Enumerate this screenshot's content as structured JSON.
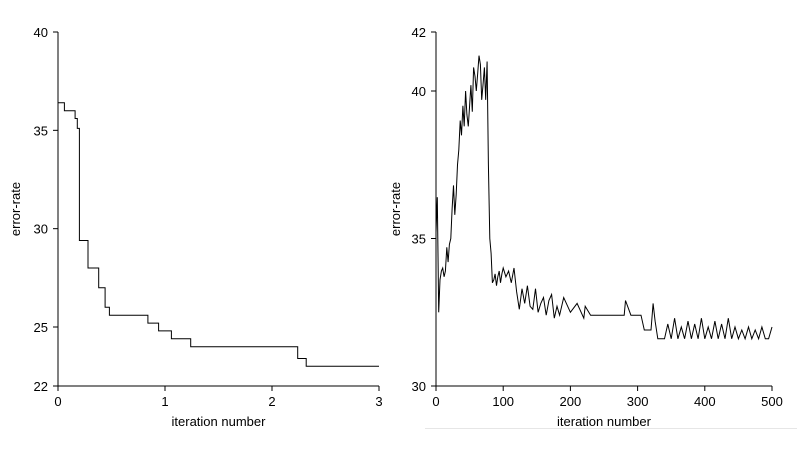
{
  "chart_data": [
    {
      "type": "line",
      "title": "",
      "xlabel": "iteration number",
      "ylabel": "error-rate",
      "xlim": [
        0,
        3
      ],
      "ylim": [
        22,
        40
      ],
      "x_ticks": [
        0,
        1,
        2,
        3
      ],
      "y_ticks": [
        22,
        25,
        30,
        35,
        40
      ],
      "grid": false,
      "legend": "none",
      "line_color": "#000000",
      "series": [
        {
          "step": true,
          "x": [
            0,
            0.06,
            0.08,
            0.16,
            0.18,
            0.2,
            0.22,
            0.28,
            0.34,
            0.38,
            0.44,
            0.48,
            0.84,
            0.94,
            1.06,
            1.24,
            2.24,
            2.32,
            3.0
          ],
          "y": [
            36.4,
            36.0,
            36.0,
            35.6,
            35.1,
            29.4,
            29.4,
            28.0,
            28.0,
            27.0,
            26.0,
            25.6,
            25.2,
            24.8,
            24.4,
            24.0,
            23.4,
            23.0,
            23.0
          ]
        }
      ]
    },
    {
      "type": "line",
      "title": "",
      "xlabel": "iteration number",
      "ylabel": "error-rate",
      "xlim": [
        0,
        500
      ],
      "ylim": [
        30,
        42
      ],
      "x_ticks": [
        0,
        100,
        200,
        300,
        400,
        500
      ],
      "y_ticks": [
        30,
        35,
        40,
        42
      ],
      "grid": false,
      "legend": "none",
      "line_color": "#000000",
      "series": [
        {
          "step": false,
          "x": [
            0,
            2,
            4,
            6,
            8,
            10,
            12,
            14,
            16,
            18,
            20,
            22,
            24,
            26,
            28,
            30,
            32,
            34,
            36,
            38,
            40,
            42,
            44,
            46,
            48,
            50,
            52,
            54,
            56,
            58,
            60,
            62,
            64,
            66,
            68,
            70,
            72,
            74,
            76,
            78,
            80,
            82,
            84,
            86,
            88,
            90,
            92,
            94,
            96,
            98,
            100,
            104,
            108,
            112,
            116,
            120,
            124,
            128,
            132,
            136,
            140,
            144,
            148,
            152,
            156,
            160,
            164,
            168,
            172,
            176,
            180,
            184,
            190,
            200,
            210,
            220,
            222,
            230,
            250,
            270,
            280,
            282,
            290,
            300,
            305,
            310,
            315,
            320,
            323,
            326,
            330,
            335,
            340,
            345,
            350,
            355,
            360,
            365,
            370,
            375,
            380,
            385,
            390,
            395,
            400,
            405,
            410,
            415,
            420,
            425,
            430,
            435,
            440,
            445,
            450,
            455,
            460,
            465,
            470,
            475,
            480,
            485,
            490,
            495,
            500
          ],
          "y": [
            35.2,
            36.4,
            32.5,
            33.6,
            33.9,
            34.0,
            33.7,
            33.9,
            34.7,
            34.2,
            34.8,
            35.0,
            36.0,
            36.8,
            35.8,
            36.5,
            37.5,
            38.0,
            39.0,
            38.5,
            39.5,
            38.8,
            40.0,
            39.2,
            38.8,
            39.5,
            40.2,
            39.3,
            40.8,
            40.5,
            40.0,
            40.6,
            41.2,
            40.9,
            39.7,
            40.2,
            40.8,
            39.7,
            41.0,
            37.5,
            35.0,
            34.5,
            33.5,
            33.6,
            33.8,
            33.4,
            33.7,
            33.9,
            33.5,
            33.8,
            34.0,
            33.7,
            33.9,
            33.5,
            34.0,
            33.2,
            32.6,
            33.3,
            32.8,
            33.4,
            32.7,
            32.6,
            33.3,
            32.5,
            32.8,
            33.0,
            32.4,
            32.9,
            33.1,
            32.3,
            32.7,
            32.4,
            33.0,
            32.5,
            32.8,
            32.3,
            32.7,
            32.4,
            32.4,
            32.4,
            32.4,
            32.9,
            32.4,
            32.4,
            32.4,
            31.9,
            31.9,
            31.9,
            32.8,
            32.2,
            31.6,
            31.6,
            31.6,
            32.1,
            31.6,
            32.3,
            31.6,
            32.0,
            31.6,
            32.2,
            31.6,
            32.1,
            31.6,
            32.3,
            31.6,
            32.0,
            31.6,
            32.2,
            31.6,
            32.1,
            31.6,
            32.3,
            31.6,
            32.0,
            31.6,
            31.9,
            31.6,
            32.0,
            31.6,
            31.9,
            31.6,
            32.0,
            31.6,
            31.6,
            32.0
          ]
        }
      ]
    }
  ]
}
